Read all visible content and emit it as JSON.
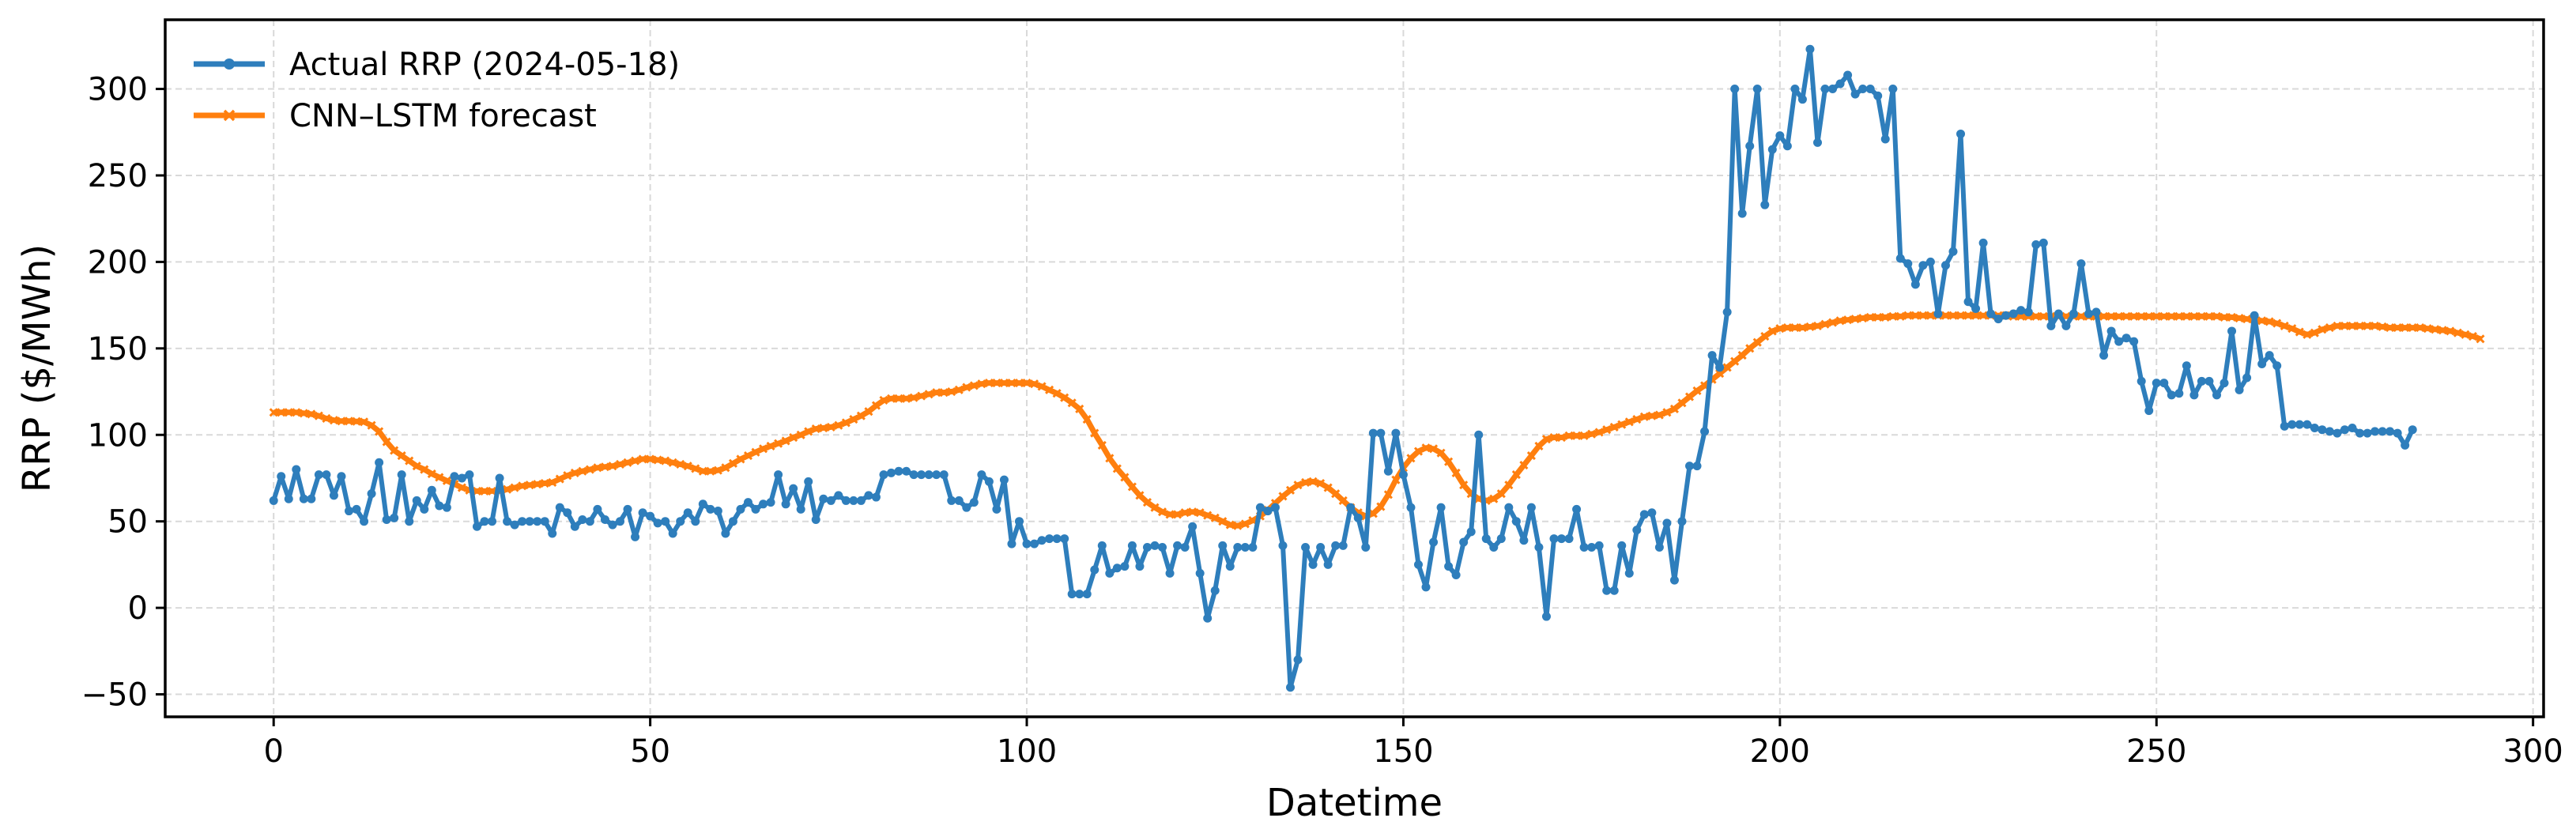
{
  "chart_data": {
    "type": "line",
    "title": "",
    "xlabel": "Datetime",
    "ylabel": "RRP ($/MWh)",
    "xlim": [
      -14.4,
      301.4
    ],
    "ylim": [
      -63,
      340
    ],
    "xticks": [
      0,
      50,
      100,
      150,
      200,
      250,
      300
    ],
    "yticks": [
      -50,
      0,
      50,
      100,
      150,
      200,
      250,
      300
    ],
    "grid": true,
    "legend_position": "top-left",
    "series": [
      {
        "name": "Actual RRP (2024-05-18)",
        "color": "#2e7ebc",
        "marker": "circle",
        "values": [
          62,
          76,
          63,
          80,
          63,
          63,
          77,
          77,
          65,
          76,
          56,
          57,
          50,
          66,
          84,
          51,
          52,
          77,
          50,
          62,
          57,
          68,
          59,
          58,
          76,
          75,
          77,
          47,
          50,
          50,
          75,
          50,
          48,
          50,
          50,
          50,
          50,
          43,
          58,
          55,
          47,
          51,
          50,
          57,
          51,
          48,
          50,
          57,
          41,
          55,
          53,
          49,
          50,
          43,
          50,
          55,
          50,
          60,
          57,
          56,
          43,
          50,
          57,
          61,
          57,
          60,
          61,
          77,
          60,
          69,
          57,
          73,
          51,
          63,
          62,
          65,
          62,
          62,
          62,
          65,
          64,
          77,
          78,
          79,
          79,
          77,
          77,
          77,
          77,
          77,
          62,
          62,
          58,
          61,
          77,
          73,
          57,
          74,
          37,
          50,
          37,
          37,
          39,
          40,
          40,
          40,
          8,
          8,
          8,
          22,
          36,
          20,
          23,
          24,
          36,
          24,
          35,
          36,
          35,
          20,
          36,
          35,
          47,
          20,
          -6,
          10,
          36,
          24,
          35,
          35,
          35,
          58,
          56,
          58,
          36,
          -46,
          -30,
          35,
          25,
          35,
          25,
          36,
          36,
          58,
          52,
          35,
          101,
          101,
          79,
          101,
          77,
          58,
          25,
          12,
          38,
          58,
          24,
          19,
          38,
          44,
          100,
          40,
          35,
          40,
          58,
          50,
          39,
          58,
          35,
          -5,
          40,
          40,
          40,
          57,
          35,
          35,
          36,
          10,
          10,
          36,
          20,
          45,
          54,
          55,
          35,
          49,
          16,
          50,
          82,
          82,
          102,
          146,
          139,
          171,
          300,
          228,
          267,
          300,
          233,
          265,
          273,
          267,
          300,
          294,
          323,
          269,
          300,
          300,
          303,
          308,
          297,
          300,
          300,
          296,
          271,
          300,
          202,
          199,
          187,
          198,
          200,
          170,
          198,
          206,
          274,
          177,
          173,
          211,
          170,
          167,
          169,
          170,
          172,
          171,
          210,
          211,
          163,
          170,
          163,
          170,
          199,
          170,
          171,
          146,
          160,
          154,
          156,
          154,
          131,
          114,
          130,
          130,
          123,
          124,
          140,
          123,
          131,
          131,
          123,
          130,
          160,
          126,
          133,
          169,
          141,
          146,
          140,
          105,
          106,
          106,
          106,
          104,
          103,
          102,
          101,
          103,
          104,
          101,
          101,
          102,
          102,
          102,
          101,
          94,
          103
        ]
      },
      {
        "name": "CNN–LSTM forecast",
        "color": "#ff7f0e",
        "marker": "x",
        "values": [
          113,
          113,
          113,
          113,
          112.5,
          112,
          111,
          109.5,
          108.5,
          108,
          108,
          107.8,
          107.5,
          105.5,
          102,
          96,
          91,
          88,
          85,
          82,
          80,
          77.5,
          75.5,
          73.5,
          71.5,
          69.5,
          68,
          67.5,
          67.5,
          67.5,
          67.5,
          68.5,
          69.5,
          70.5,
          71,
          71.5,
          72,
          72.5,
          74.5,
          76.5,
          78,
          79,
          80,
          81,
          81.5,
          82,
          83,
          84,
          85,
          86,
          86,
          85.5,
          85,
          84,
          83,
          82,
          80.5,
          79,
          79,
          79.5,
          81,
          83.5,
          86,
          88,
          90,
          92,
          93.5,
          95,
          96.5,
          98.5,
          100,
          102,
          103.5,
          104,
          104.5,
          105.5,
          107,
          109,
          111,
          113.5,
          117,
          120,
          121,
          121,
          121,
          121.5,
          122.5,
          123.5,
          124.5,
          124.5,
          125,
          126,
          127.5,
          128.5,
          129.5,
          130,
          130,
          130,
          130,
          130,
          130,
          129.5,
          128,
          126,
          124,
          121.5,
          118.5,
          115,
          109,
          101,
          94,
          86.5,
          80.5,
          75.5,
          70,
          65,
          61,
          58,
          55.5,
          54,
          54,
          55,
          55.5,
          55,
          53.5,
          52,
          50,
          48,
          47.5,
          48.5,
          50.5,
          53,
          56.5,
          60.5,
          64.5,
          68,
          71,
          72.5,
          73,
          72,
          69.5,
          66,
          62,
          58,
          55,
          53,
          54.5,
          58.5,
          65.5,
          74,
          81,
          86.5,
          90.5,
          92.5,
          92,
          89.5,
          84.5,
          78,
          71,
          66,
          63,
          62,
          63,
          66,
          71,
          77,
          82.5,
          88,
          93.5,
          97.5,
          98.5,
          98.5,
          99.5,
          99.5,
          99.5,
          100.5,
          101.5,
          103,
          104.5,
          106,
          107.5,
          109,
          110.5,
          111,
          111.5,
          113,
          115,
          118.5,
          122,
          125.5,
          128.5,
          132,
          135.5,
          139,
          142.5,
          146,
          150,
          153.5,
          157,
          160,
          161.5,
          162,
          162,
          162,
          162.5,
          163,
          164,
          165,
          166,
          166.5,
          167,
          167.5,
          168,
          168,
          168,
          168.5,
          168.5,
          169,
          169,
          169,
          169,
          169,
          169,
          169,
          169,
          169,
          169,
          169,
          169,
          169,
          169,
          168.5,
          168.5,
          168.5,
          168.5,
          168.5,
          168.5,
          168.5,
          168.5,
          168.5,
          168.5,
          168.5,
          168.5,
          168.5,
          168.5,
          168.5,
          168.5,
          168.5,
          168.5,
          168.5,
          168.5,
          168.5,
          168.5,
          168.5,
          168.5,
          168.5,
          168.5,
          168.5,
          168.5,
          168,
          168,
          167.5,
          167,
          166.5,
          166,
          165.5,
          164.5,
          163,
          161.5,
          159.5,
          158,
          159,
          161,
          162,
          163,
          163,
          163,
          163,
          163,
          163,
          162.5,
          162,
          162,
          162,
          162,
          162,
          161.5,
          161,
          160.5,
          160,
          159,
          158,
          157,
          155.5
        ]
      }
    ]
  }
}
